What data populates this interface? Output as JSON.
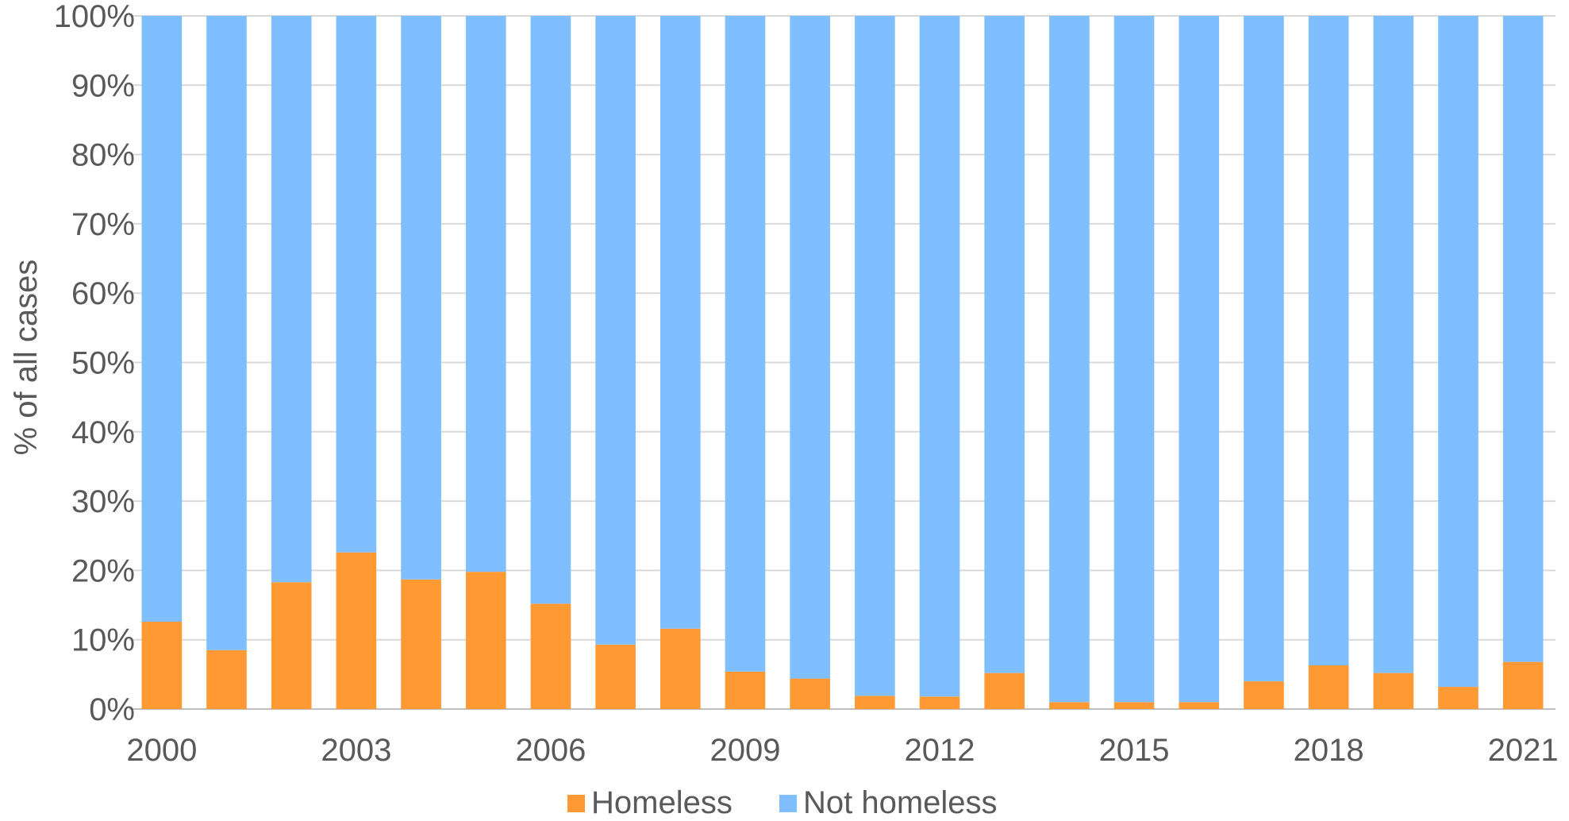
{
  "chart_data": {
    "type": "bar",
    "stacked": true,
    "categories": [
      "2000",
      "2001",
      "2002",
      "2003",
      "2004",
      "2005",
      "2006",
      "2007",
      "2008",
      "2009",
      "2010",
      "2011",
      "2012",
      "2013",
      "2014",
      "2015",
      "2016",
      "2017",
      "2018",
      "2019",
      "2020",
      "2021"
    ],
    "x_tick_labels": [
      "2000",
      "2003",
      "2006",
      "2009",
      "2012",
      "2015",
      "2018",
      "2021"
    ],
    "series": [
      {
        "name": "Homeless",
        "color": "#FF9933",
        "values": [
          12.6,
          8.5,
          18.3,
          22.6,
          18.7,
          19.8,
          15.2,
          9.3,
          11.6,
          5.4,
          4.4,
          1.9,
          1.8,
          5.2,
          1.0,
          1.0,
          1.0,
          4.0,
          6.3,
          5.2,
          3.2,
          6.8
        ]
      },
      {
        "name": "Not homeless",
        "color": "#80BFFF",
        "values": [
          87.4,
          91.5,
          81.7,
          77.4,
          81.3,
          80.2,
          84.8,
          90.7,
          88.4,
          94.6,
          95.6,
          98.1,
          98.2,
          94.8,
          99.0,
          99.0,
          99.0,
          96.0,
          93.7,
          94.8,
          96.8,
          93.2
        ]
      }
    ],
    "ylabel": "% of all cases",
    "xlabel": "",
    "title": "",
    "ylim": [
      0,
      100
    ],
    "y_ticks": [
      "0%",
      "10%",
      "20%",
      "30%",
      "40%",
      "50%",
      "60%",
      "70%",
      "80%",
      "90%",
      "100%"
    ],
    "grid": true,
    "legend_position": "bottom"
  }
}
